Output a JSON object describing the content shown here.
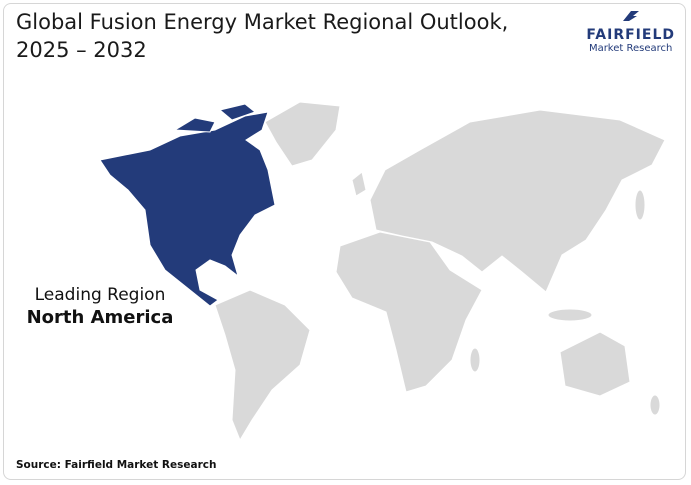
{
  "header": {
    "title_line1": "Global Fusion Energy Market Regional Outlook,",
    "title_line2": "2025 – 2032"
  },
  "logo": {
    "name": "FAIRFIELD",
    "tagline": "Market Research"
  },
  "callout": {
    "label": "Leading Region",
    "region": "North America"
  },
  "footer": {
    "source": "Source: Fairfield Market Research"
  }
}
